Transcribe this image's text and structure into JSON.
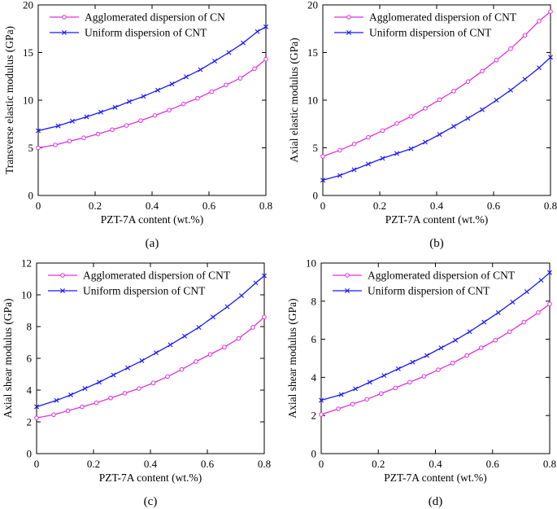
{
  "chart_data": [
    {
      "type": "line",
      "panel_label": "(a)",
      "xlabel": "PZT-7A content (wt.%)",
      "ylabel": "Transverse elastic modulus (GPa)",
      "xlim": [
        0,
        0.8
      ],
      "ylim": [
        0,
        20
      ],
      "xticks": [
        0,
        0.2,
        0.4,
        0.6,
        0.8
      ],
      "xtick_labels": [
        "0",
        "0.2",
        "0.4",
        "0.6",
        "0.8"
      ],
      "yticks": [
        0,
        5,
        10,
        15,
        20
      ],
      "ytick_labels": [
        "0",
        "5",
        "10",
        "15",
        "20"
      ],
      "legend_position": "top-left",
      "series": [
        {
          "name": "Agglomerated dispersion of CN",
          "color": "#e030e0",
          "marker": "circle",
          "x": [
            0,
            0.06,
            0.11,
            0.16,
            0.21,
            0.26,
            0.31,
            0.36,
            0.41,
            0.46,
            0.51,
            0.56,
            0.61,
            0.66,
            0.71,
            0.76,
            0.8
          ],
          "y": [
            5.0,
            5.3,
            5.7,
            6.05,
            6.45,
            6.9,
            7.35,
            7.85,
            8.4,
            8.95,
            9.6,
            10.2,
            10.9,
            11.6,
            12.3,
            13.3,
            14.3
          ]
        },
        {
          "name": "Uniform dispersion of CNT",
          "color": "#1a1aff",
          "marker": "x",
          "x": [
            0,
            0.07,
            0.12,
            0.17,
            0.22,
            0.27,
            0.32,
            0.37,
            0.42,
            0.47,
            0.52,
            0.57,
            0.62,
            0.67,
            0.72,
            0.77,
            0.8
          ],
          "y": [
            6.8,
            7.3,
            7.8,
            8.25,
            8.75,
            9.25,
            9.85,
            10.4,
            11.05,
            11.7,
            12.45,
            13.2,
            14.1,
            15.0,
            16.0,
            17.2,
            17.7
          ]
        }
      ]
    },
    {
      "type": "line",
      "panel_label": "(b)",
      "xlabel": "PZT-7A content (wt.%)",
      "ylabel": "Axial elastic modulus (GPa)",
      "xlim": [
        0,
        0.8
      ],
      "ylim": [
        0,
        20
      ],
      "xticks": [
        0,
        0.2,
        0.4,
        0.6,
        0.8
      ],
      "xtick_labels": [
        "0",
        "0.2",
        "0.4",
        "0.6",
        "0.8"
      ],
      "yticks": [
        0,
        5,
        10,
        15,
        20
      ],
      "ytick_labels": [
        "0",
        "5",
        "10",
        "15",
        "20"
      ],
      "legend_position": "top-left",
      "series": [
        {
          "name": "Agglomerated dispersion of CNT",
          "color": "#e030e0",
          "marker": "circle",
          "x": [
            0,
            0.06,
            0.11,
            0.16,
            0.21,
            0.26,
            0.31,
            0.36,
            0.41,
            0.46,
            0.51,
            0.56,
            0.61,
            0.66,
            0.71,
            0.76,
            0.8
          ],
          "y": [
            4.1,
            4.75,
            5.4,
            6.1,
            6.8,
            7.55,
            8.3,
            9.15,
            10.05,
            10.95,
            11.95,
            13.05,
            14.2,
            15.4,
            16.8,
            18.3,
            19.3
          ]
        },
        {
          "name": "Uniform dispersion of CNT",
          "color": "#1a1aff",
          "marker": "x",
          "x": [
            0,
            0.06,
            0.11,
            0.16,
            0.21,
            0.26,
            0.31,
            0.36,
            0.41,
            0.46,
            0.51,
            0.56,
            0.61,
            0.66,
            0.71,
            0.76,
            0.8
          ],
          "y": [
            1.6,
            2.1,
            2.7,
            3.3,
            3.9,
            4.4,
            4.9,
            5.6,
            6.4,
            7.25,
            8.1,
            9.0,
            10.0,
            11.05,
            12.2,
            13.4,
            14.5
          ]
        }
      ]
    },
    {
      "type": "line",
      "panel_label": "(c)",
      "xlabel": "PZT-7A content (wt.%)",
      "ylabel": "Axial shear modulus (GPa)",
      "xlim": [
        0,
        0.8
      ],
      "ylim": [
        0,
        12
      ],
      "xticks": [
        0,
        0.2,
        0.4,
        0.6,
        0.8
      ],
      "xtick_labels": [
        "0",
        "0.2",
        "0.4",
        "0.6",
        "0.8"
      ],
      "yticks": [
        0,
        2,
        4,
        6,
        8,
        10,
        12
      ],
      "ytick_labels": [
        "0",
        "2",
        "4",
        "6",
        "8",
        "10",
        "12"
      ],
      "legend_position": "top-left",
      "series": [
        {
          "name": "Agglomerated dispersion of CNT",
          "color": "#e030e0",
          "marker": "circle",
          "x": [
            0,
            0.06,
            0.11,
            0.16,
            0.21,
            0.26,
            0.31,
            0.36,
            0.41,
            0.46,
            0.51,
            0.56,
            0.61,
            0.66,
            0.71,
            0.76,
            0.8
          ],
          "y": [
            2.25,
            2.45,
            2.7,
            2.95,
            3.2,
            3.5,
            3.8,
            4.1,
            4.45,
            4.85,
            5.3,
            5.8,
            6.25,
            6.7,
            7.25,
            7.95,
            8.6
          ]
        },
        {
          "name": "Uniform dispersion of CNT",
          "color": "#1a1aff",
          "marker": "x",
          "x": [
            0,
            0.07,
            0.12,
            0.17,
            0.22,
            0.27,
            0.32,
            0.37,
            0.42,
            0.47,
            0.52,
            0.57,
            0.62,
            0.67,
            0.72,
            0.77,
            0.8
          ],
          "y": [
            2.95,
            3.35,
            3.7,
            4.1,
            4.5,
            4.95,
            5.4,
            5.85,
            6.35,
            6.85,
            7.4,
            7.95,
            8.6,
            9.25,
            9.95,
            10.75,
            11.2
          ]
        }
      ]
    },
    {
      "type": "line",
      "panel_label": "(d)",
      "xlabel": "PZT-7A content (wt.%)",
      "ylabel": "Axial shear modulus (GPa)",
      "xlim": [
        0,
        0.8
      ],
      "ylim": [
        0,
        10
      ],
      "xticks": [
        0,
        0.2,
        0.4,
        0.6,
        0.8
      ],
      "xtick_labels": [
        "0",
        "0.2",
        "0.4",
        "0.6",
        "0.8"
      ],
      "yticks": [
        0,
        2,
        4,
        6,
        8,
        10
      ],
      "ytick_labels": [
        "0",
        "2",
        "4",
        "6",
        "8",
        "10"
      ],
      "legend_position": "top-left",
      "series": [
        {
          "name": "Agglomerated dispersion of CNT",
          "color": "#e030e0",
          "marker": "circle",
          "x": [
            0,
            0.06,
            0.11,
            0.16,
            0.21,
            0.26,
            0.31,
            0.36,
            0.41,
            0.46,
            0.51,
            0.56,
            0.61,
            0.66,
            0.71,
            0.76,
            0.8
          ],
          "y": [
            2.05,
            2.35,
            2.6,
            2.85,
            3.15,
            3.45,
            3.75,
            4.05,
            4.4,
            4.75,
            5.15,
            5.55,
            5.95,
            6.4,
            6.9,
            7.4,
            7.85
          ]
        },
        {
          "name": "Uniform dispersion of CNT",
          "color": "#1a1aff",
          "marker": "x",
          "x": [
            0,
            0.07,
            0.12,
            0.17,
            0.22,
            0.27,
            0.32,
            0.37,
            0.42,
            0.47,
            0.52,
            0.57,
            0.62,
            0.67,
            0.72,
            0.77,
            0.8
          ],
          "y": [
            2.8,
            3.1,
            3.4,
            3.75,
            4.1,
            4.45,
            4.8,
            5.15,
            5.55,
            5.95,
            6.4,
            6.9,
            7.4,
            7.95,
            8.5,
            9.1,
            9.5
          ]
        }
      ]
    }
  ]
}
